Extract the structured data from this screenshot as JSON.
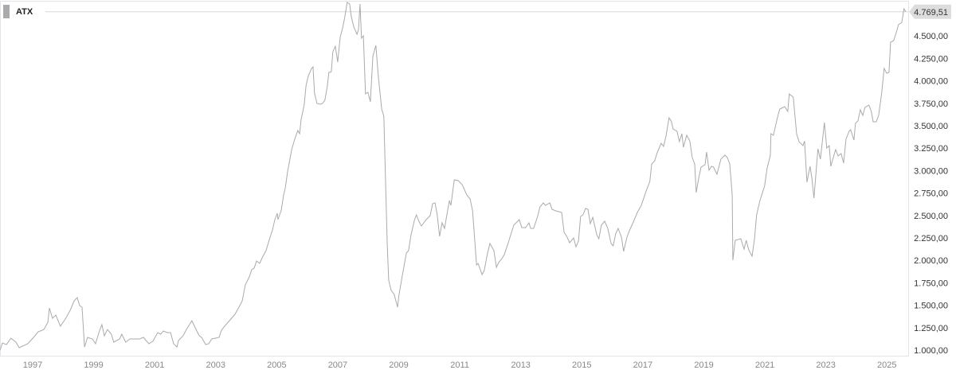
{
  "chart_data": {
    "type": "line",
    "title": "",
    "xlabel": "",
    "ylabel": "",
    "legend": {
      "placement": "top-left",
      "entries": [
        "ATX"
      ]
    },
    "grid": false,
    "xlim": [
      1995.93,
      2025.72
    ],
    "ylim": [
      1000,
      4880
    ],
    "x_ticks": [
      "1997",
      "1999",
      "2001",
      "2003",
      "2005",
      "2007",
      "2009",
      "2011",
      "2013",
      "2015",
      "2017",
      "2019",
      "2021",
      "2023",
      "2025"
    ],
    "y_ticks": [
      {
        "value": 1000,
        "label": "1.000,00"
      },
      {
        "value": 1250,
        "label": "1.250,00"
      },
      {
        "value": 1500,
        "label": "1.500,00"
      },
      {
        "value": 1750,
        "label": "1.750,00"
      },
      {
        "value": 2000,
        "label": "2.000,00"
      },
      {
        "value": 2250,
        "label": "2.250,00"
      },
      {
        "value": 2500,
        "label": "2.500,00"
      },
      {
        "value": 2750,
        "label": "2.750,00"
      },
      {
        "value": 3000,
        "label": "3.000,00"
      },
      {
        "value": 3250,
        "label": "3.250,00"
      },
      {
        "value": 3500,
        "label": "3.500,00"
      },
      {
        "value": 3750,
        "label": "3.750,00"
      },
      {
        "value": 4000,
        "label": "4.000,00"
      },
      {
        "value": 4250,
        "label": "4.250,00"
      },
      {
        "value": 4500,
        "label": "4.500,00"
      }
    ],
    "last_value": 4769.51,
    "last_value_label": "4.769,51",
    "line_color": "#aaaaaa",
    "series": [
      {
        "name": "ATX",
        "x": [
          1995.93,
          1996.01,
          1996.14,
          1996.29,
          1996.45,
          1996.56,
          1996.84,
          1997.03,
          1997.18,
          1997.37,
          1997.5,
          1997.55,
          1997.65,
          1997.76,
          1997.91,
          1998.07,
          1998.23,
          1998.36,
          1998.46,
          1998.54,
          1998.62,
          1998.7,
          1998.8,
          1998.96,
          1999.06,
          1999.19,
          1999.27,
          1999.35,
          1999.45,
          1999.58,
          1999.66,
          1999.85,
          1999.92,
          2000.05,
          2000.19,
          2000.5,
          2000.63,
          2000.81,
          2000.94,
          2001.1,
          2001.2,
          2001.28,
          2001.41,
          2001.52,
          2001.62,
          2001.73,
          2001.78,
          2001.93,
          2002.04,
          2002.22,
          2002.33,
          2002.46,
          2002.54,
          2002.67,
          2002.77,
          2002.87,
          2003.11,
          2003.19,
          2003.29,
          2003.45,
          2003.63,
          2003.76,
          2003.87,
          2003.97,
          2004.1,
          2004.18,
          2004.26,
          2004.34,
          2004.44,
          2004.55,
          2004.65,
          2004.75,
          2004.86,
          2004.94,
          2005.02,
          2005.04,
          2005.15,
          2005.22,
          2005.28,
          2005.36,
          2005.41,
          2005.49,
          2005.59,
          2005.69,
          2005.75,
          2005.8,
          2005.9,
          2005.96,
          2006.03,
          2006.14,
          2006.19,
          2006.24,
          2006.32,
          2006.43,
          2006.5,
          2006.58,
          2006.66,
          2006.71,
          2006.79,
          2006.84,
          2006.92,
          2007.0,
          2007.08,
          2007.16,
          2007.23,
          2007.31,
          2007.39,
          2007.44,
          2007.52,
          2007.63,
          2007.68,
          2007.73,
          2007.78,
          2007.84,
          2007.91,
          2007.99,
          2008.07,
          2008.15,
          2008.25,
          2008.33,
          2008.44,
          2008.51,
          2008.62,
          2008.67,
          2008.75,
          2008.85,
          2008.96,
          2009.01,
          2009.11,
          2009.25,
          2009.32,
          2009.4,
          2009.51,
          2009.58,
          2009.66,
          2009.74,
          2009.9,
          2010.03,
          2010.11,
          2010.19,
          2010.26,
          2010.34,
          2010.42,
          2010.5,
          2010.55,
          2010.66,
          2010.71,
          2010.82,
          2010.95,
          2011.08,
          2011.23,
          2011.34,
          2011.42,
          2011.55,
          2011.6,
          2011.73,
          2011.8,
          2011.91,
          2011.99,
          2012.12,
          2012.2,
          2012.27,
          2012.38,
          2012.46,
          2012.59,
          2012.77,
          2012.95,
          2013.03,
          2013.16,
          2013.27,
          2013.32,
          2013.42,
          2013.55,
          2013.63,
          2013.74,
          2013.81,
          2013.95,
          2014.02,
          2014.15,
          2014.34,
          2014.42,
          2014.52,
          2014.6,
          2014.73,
          2014.81,
          2014.89,
          2014.96,
          2015.04,
          2015.12,
          2015.2,
          2015.28,
          2015.36,
          2015.49,
          2015.56,
          2015.64,
          2015.75,
          2015.85,
          2015.96,
          2016.03,
          2016.11,
          2016.19,
          2016.3,
          2016.37,
          2016.48,
          2016.56,
          2016.69,
          2016.82,
          2016.95,
          2017.08,
          2017.16,
          2017.23,
          2017.29,
          2017.39,
          2017.47,
          2017.6,
          2017.68,
          2017.76,
          2017.86,
          2017.94,
          2017.99,
          2018.12,
          2018.2,
          2018.28,
          2018.33,
          2018.44,
          2018.54,
          2018.62,
          2018.7,
          2018.75,
          2018.83,
          2018.91,
          2019.04,
          2019.09,
          2019.17,
          2019.25,
          2019.32,
          2019.43,
          2019.56,
          2019.69,
          2019.77,
          2019.85,
          2019.93,
          2019.95,
          2020.03,
          2020.21,
          2020.32,
          2020.39,
          2020.47,
          2020.58,
          2020.66,
          2020.73,
          2020.84,
          2020.99,
          2021.07,
          2021.18,
          2021.2,
          2021.28,
          2021.41,
          2021.49,
          2021.65,
          2021.75,
          2021.8,
          2021.93,
          2022.04,
          2022.12,
          2022.25,
          2022.3,
          2022.38,
          2022.48,
          2022.54,
          2022.61,
          2022.74,
          2022.82,
          2022.95,
          2023.03,
          2023.11,
          2023.16,
          2023.32,
          2023.4,
          2023.5,
          2023.58,
          2023.66,
          2023.76,
          2023.81,
          2023.92,
          2023.97,
          2024.05,
          2024.13,
          2024.21,
          2024.28,
          2024.41,
          2024.49,
          2024.55,
          2024.65,
          2024.73,
          2024.83,
          2024.91,
          2024.99,
          2025.07,
          2025.12,
          2025.22,
          2025.33,
          2025.38,
          2025.49,
          2025.56,
          2025.62
        ],
        "y": [
          1000,
          1080,
          1062,
          1133,
          1089,
          1027,
          1071,
          1142,
          1204,
          1230,
          1310,
          1470,
          1355,
          1390,
          1266,
          1346,
          1443,
          1550,
          1585,
          1496,
          1479,
          1035,
          1142,
          1124,
          1071,
          1213,
          1284,
          1160,
          1230,
          1177,
          1089,
          1124,
          1177,
          1089,
          1124,
          1124,
          1142,
          1071,
          1098,
          1195,
          1177,
          1213,
          1195,
          1195,
          1071,
          1035,
          1106,
          1160,
          1230,
          1328,
          1248,
          1160,
          1142,
          1062,
          1071,
          1124,
          1142,
          1222,
          1266,
          1328,
          1399,
          1479,
          1550,
          1727,
          1816,
          1895,
          1913,
          1993,
          1966,
          2046,
          2108,
          2223,
          2339,
          2454,
          2525,
          2454,
          2560,
          2720,
          2808,
          2995,
          3083,
          3234,
          3349,
          3447,
          3411,
          3571,
          3730,
          3943,
          4050,
          4138,
          4156,
          3863,
          3748,
          3739,
          3748,
          3784,
          3943,
          4094,
          4103,
          4324,
          4386,
          4209,
          4484,
          4590,
          4706,
          4874,
          4856,
          4723,
          4608,
          4519,
          4573,
          4856,
          4475,
          4502,
          3855,
          3872,
          3766,
          4271,
          4395,
          4050,
          3686,
          3606,
          2197,
          1780,
          1665,
          1621,
          1479,
          1621,
          1816,
          2082,
          2108,
          2277,
          2445,
          2507,
          2436,
          2383,
          2454,
          2498,
          2631,
          2640,
          2507,
          2268,
          2418,
          2356,
          2454,
          2667,
          2613,
          2897,
          2888,
          2844,
          2729,
          2684,
          2551,
          1949,
          1966,
          1842,
          1887,
          2082,
          2188,
          2108,
          1922,
          1975,
          2019,
          2064,
          2197,
          2392,
          2454,
          2365,
          2365,
          2418,
          2356,
          2356,
          2489,
          2596,
          2640,
          2613,
          2640,
          2569,
          2551,
          2534,
          2312,
          2259,
          2197,
          2250,
          2152,
          2215,
          2489,
          2507,
          2578,
          2569,
          2410,
          2480,
          2285,
          2241,
          2392,
          2436,
          2356,
          2188,
          2161,
          2294,
          2356,
          2259,
          2099,
          2259,
          2330,
          2427,
          2534,
          2613,
          2746,
          2817,
          2879,
          3074,
          3110,
          3199,
          3305,
          3269,
          3385,
          3589,
          3544,
          3464,
          3438,
          3323,
          3411,
          3261,
          3394,
          3331,
          3145,
          3074,
          2755,
          2915,
          3039,
          3066,
          3207,
          3004,
          3048,
          3039,
          2959,
          3128,
          3172,
          3145,
          3074,
          2729,
          2002,
          2223,
          2241,
          2126,
          2223,
          2117,
          2046,
          2241,
          2507,
          2667,
          2826,
          3021,
          3172,
          3411,
          3394,
          3589,
          3686,
          3713,
          3660,
          3854,
          3819,
          3411,
          3323,
          3278,
          3331,
          2871,
          3048,
          2924,
          2693,
          3243,
          3128,
          3535,
          3252,
          3278,
          3048,
          3234,
          3163,
          3190,
          3083,
          3349,
          3438,
          3456,
          3340,
          3527,
          3553,
          3677,
          3615,
          3704,
          3730,
          3660,
          3544,
          3544,
          3615,
          3863,
          4138,
          4085,
          4094,
          4431,
          4448,
          4564,
          4626,
          4652,
          4803,
          4769.51
        ]
      }
    ]
  }
}
